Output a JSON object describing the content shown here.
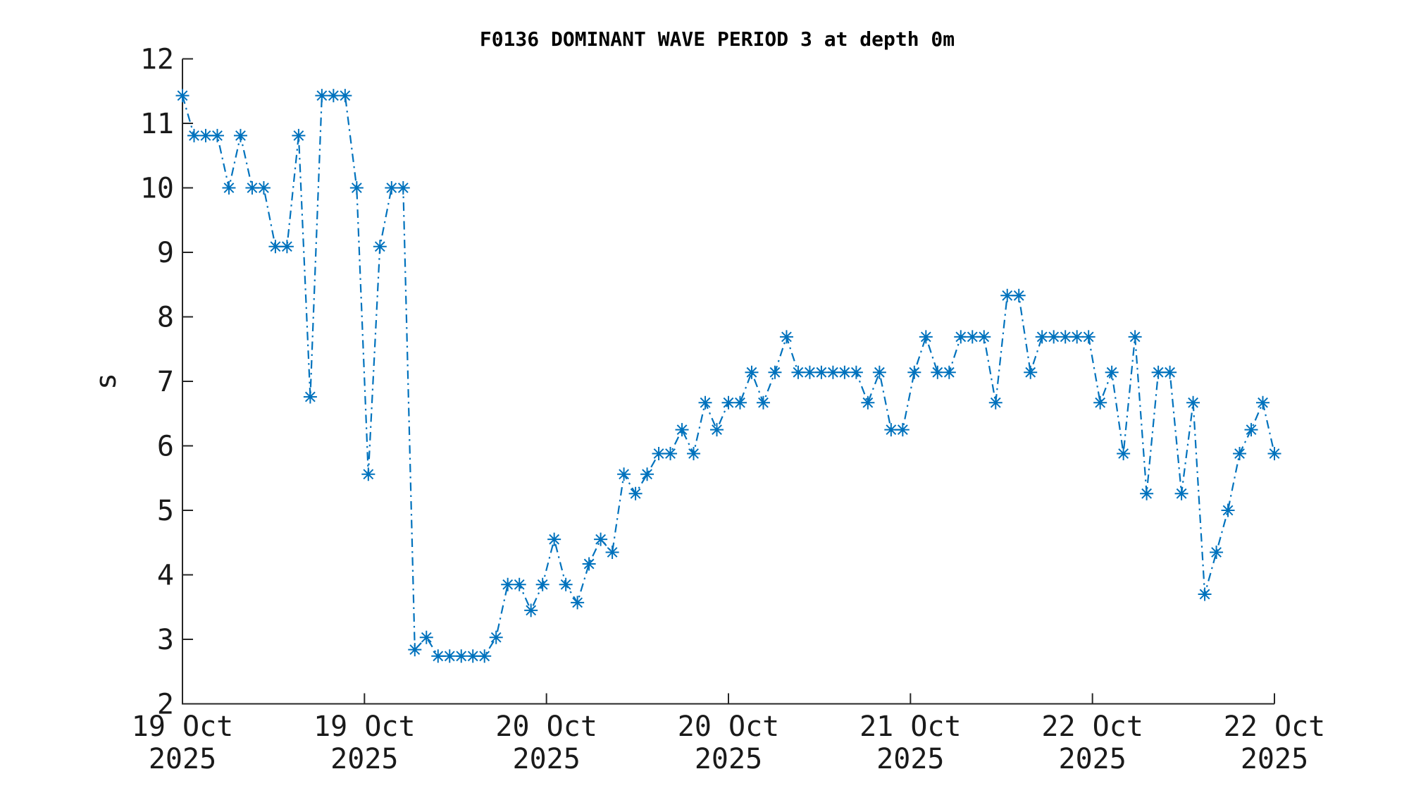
{
  "chart_data": {
    "type": "line",
    "title": "F0136 DOMINANT WAVE PERIOD 3 at depth 0m",
    "xlabel": "",
    "ylabel": "s",
    "ylim": [
      2,
      12
    ],
    "y_ticks": [
      12,
      11,
      10,
      9,
      8,
      7,
      6,
      5,
      4,
      3,
      2
    ],
    "x_tick_labels": [
      {
        "day": "19 Oct",
        "year": "2025"
      },
      {
        "day": "19 Oct",
        "year": "2025"
      },
      {
        "day": "20 Oct",
        "year": "2025"
      },
      {
        "day": "20 Oct",
        "year": "2025"
      },
      {
        "day": "21 Oct",
        "year": "2025"
      },
      {
        "day": "22 Oct",
        "year": "2025"
      },
      {
        "day": "22 Oct",
        "year": "2025"
      }
    ],
    "grid": false,
    "legend": "none",
    "line_style": "dash-dot",
    "marker": "asterisk",
    "line_color": "#0072BD",
    "axis_color": "#262626",
    "background_color": "#ffffff",
    "n_points": 95,
    "series": [
      {
        "name": "dominant wave period (s)",
        "values": [
          11.43,
          10.81,
          10.81,
          10.81,
          10.0,
          10.81,
          10.0,
          10.0,
          9.09,
          9.09,
          10.81,
          6.76,
          11.43,
          11.43,
          11.43,
          10.0,
          5.56,
          9.09,
          10.0,
          10.0,
          2.84,
          3.03,
          2.74,
          2.74,
          2.74,
          2.74,
          2.74,
          3.03,
          3.85,
          3.85,
          3.45,
          3.85,
          4.55,
          3.85,
          3.57,
          4.17,
          4.55,
          4.35,
          5.56,
          5.26,
          5.56,
          5.88,
          5.88,
          6.25,
          5.88,
          6.67,
          6.25,
          6.67,
          6.67,
          7.14,
          6.67,
          7.14,
          7.69,
          7.14,
          7.14,
          7.14,
          7.14,
          7.14,
          7.14,
          6.67,
          7.14,
          6.25,
          6.25,
          7.14,
          7.69,
          7.14,
          7.14,
          7.69,
          7.69,
          7.69,
          6.67,
          8.33,
          8.33,
          7.14,
          7.69,
          7.69,
          7.69,
          7.69,
          7.69,
          6.67,
          7.14,
          5.88,
          7.69,
          5.26,
          7.14,
          7.14,
          5.26,
          6.67,
          3.7,
          4.35,
          5.0,
          5.88,
          6.25,
          6.67,
          5.88
        ]
      }
    ]
  }
}
